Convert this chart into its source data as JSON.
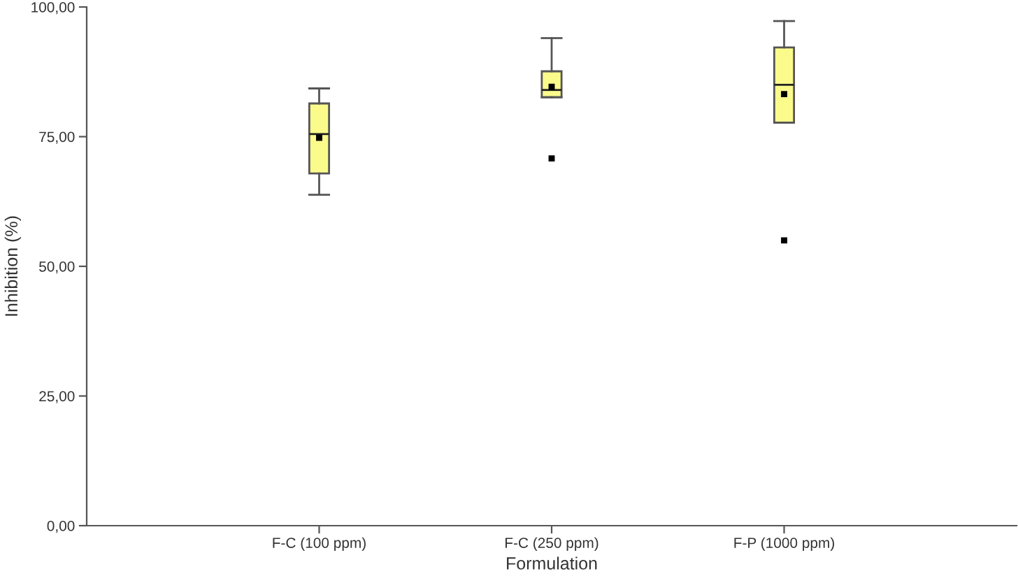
{
  "chart_data": {
    "type": "box",
    "xlabel": "Formulation",
    "ylabel": "Inhibition (%)",
    "categories": [
      "F-C (100 ppm)",
      "F-C (250 ppm)",
      "F-P (1000 ppm)"
    ],
    "boxes": [
      {
        "low": 63.8,
        "q1": 67.9,
        "median": 75.5,
        "q3": 81.4,
        "high": 84.3,
        "mean": 74.8
      },
      {
        "low": 82.6,
        "q1": 82.6,
        "median": 84.0,
        "q3": 87.6,
        "high": 94.0,
        "mean": 84.6,
        "outliers": [
          70.8
        ]
      },
      {
        "low": 77.7,
        "q1": 77.7,
        "median": 85.0,
        "q3": 92.2,
        "high": 97.3,
        "mean": 83.2,
        "outliers": [
          55.0
        ]
      }
    ],
    "color": "#fbfb8c",
    "marker": "square",
    "ylim": [
      0,
      100
    ],
    "yticks": [
      {
        "value": 0,
        "label": "0,00"
      },
      {
        "value": 25,
        "label": "25,00"
      },
      {
        "value": 50,
        "label": "50,00"
      },
      {
        "value": 75,
        "label": "75,00"
      },
      {
        "value": 100,
        "label": "100,00"
      }
    ]
  }
}
